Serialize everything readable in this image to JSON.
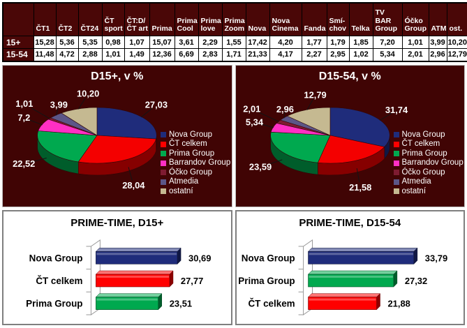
{
  "table": {
    "columns": [
      "",
      "ČT1",
      "ČT2",
      "ČT24",
      "ČT\nsport",
      "ČT:D/\nČT art",
      "Prima",
      "Prima\nCool",
      "Prima\nlove",
      "Prima\nZoom",
      "Nova",
      "Nova\nCinema",
      "Fanda",
      "Smí-\nchov",
      "Telka",
      "TV BAR\nGroup",
      "Óčko\nGroup",
      "ATM",
      "ost."
    ],
    "rows": [
      {
        "label": "15+",
        "values": [
          "15,28",
          "5,36",
          "5,35",
          "0,98",
          "1,07",
          "15,07",
          "3,61",
          "2,29",
          "1,55",
          "17,42",
          "4,20",
          "1,77",
          "1,79",
          "1,85",
          "7,20",
          "1,01",
          "3,99",
          "10,20"
        ]
      },
      {
        "label": "15-54",
        "values": [
          "11,48",
          "4,72",
          "2,88",
          "1,01",
          "1,49",
          "12,36",
          "6,69",
          "2,83",
          "1,71",
          "21,33",
          "4,17",
          "2,27",
          "2,95",
          "1,02",
          "5,34",
          "2,01",
          "2,96",
          "12,79"
        ]
      }
    ]
  },
  "legend": {
    "labels": [
      "Nova Group",
      "ČT celkem",
      "Prima Group",
      "Barrandov Group",
      "Óčko Group",
      "Atmedia",
      "ostatní"
    ],
    "colors": [
      "#1F2C7B",
      "#FF0000",
      "#00A94F",
      "#FF2FC4",
      "#7E1B31",
      "#5C5687",
      "#C5B991"
    ]
  },
  "chart_data": [
    {
      "type": "pie",
      "title": "D15+, v %",
      "labels": [
        "Nova Group",
        "ČT celkem",
        "Prima Group",
        "Barrandov Group",
        "Óčko Group",
        "Atmedia",
        "ostatní"
      ],
      "values": [
        27.03,
        28.04,
        22.52,
        7.2,
        1.01,
        3.99,
        10.2
      ],
      "value_labels": [
        "27,03",
        "28,04",
        "22,52",
        "7,2",
        "1,01",
        "3,99",
        "10,20"
      ],
      "colors": [
        "#1F2C7B",
        "#F40000",
        "#00A94F",
        "#FF2FC4",
        "#7E1B31",
        "#5C5687",
        "#C5B991"
      ],
      "start_angle_deg": 0,
      "direction": "clockwise",
      "legend_position": "right"
    },
    {
      "type": "pie",
      "title": "D15-54, v %",
      "labels": [
        "Nova Group",
        "ČT celkem",
        "Prima Group",
        "Barrandov Group",
        "Óčko Group",
        "Atmedia",
        "ostatní"
      ],
      "values": [
        31.74,
        21.58,
        23.59,
        5.34,
        2.01,
        2.96,
        12.79
      ],
      "value_labels": [
        "31,74",
        "21,58",
        "23,59",
        "5,34",
        "2,01",
        "2,96",
        "12,79"
      ],
      "colors": [
        "#1F2C7B",
        "#F40000",
        "#00A94F",
        "#FF2FC4",
        "#7E1B31",
        "#5C5687",
        "#C5B991"
      ],
      "start_angle_deg": 0,
      "direction": "clockwise",
      "legend_position": "right"
    },
    {
      "type": "bar",
      "title": "PRIME-TIME, D15+",
      "orientation": "horizontal",
      "categories": [
        "Nova Group",
        "ČT celkem",
        "Prima Group"
      ],
      "values": [
        30.69,
        27.77,
        23.51
      ],
      "value_labels": [
        "30,69",
        "27,77",
        "23,51"
      ],
      "colors": [
        "#1F2C7B",
        "#FF0000",
        "#00A94F"
      ],
      "xlim": [
        0,
        35
      ],
      "grid": false
    },
    {
      "type": "bar",
      "title": "PRIME-TIME, D15-54",
      "orientation": "horizontal",
      "categories": [
        "Nova Group",
        "Prima Group",
        "ČT celkem"
      ],
      "values": [
        33.79,
        27.32,
        21.88
      ],
      "value_labels": [
        "33,79",
        "27,32",
        "21,88"
      ],
      "colors": [
        "#1F2C7B",
        "#00A94F",
        "#FF0000"
      ],
      "xlim": [
        0,
        38
      ],
      "grid": false
    }
  ],
  "colors": {
    "panel_background": "#400404",
    "header_background": "#4A0707",
    "header_text": "#FFFFFF",
    "table_text": "#000000",
    "pie_label_text": "#FFFFFF",
    "bar_text": "#000000"
  }
}
